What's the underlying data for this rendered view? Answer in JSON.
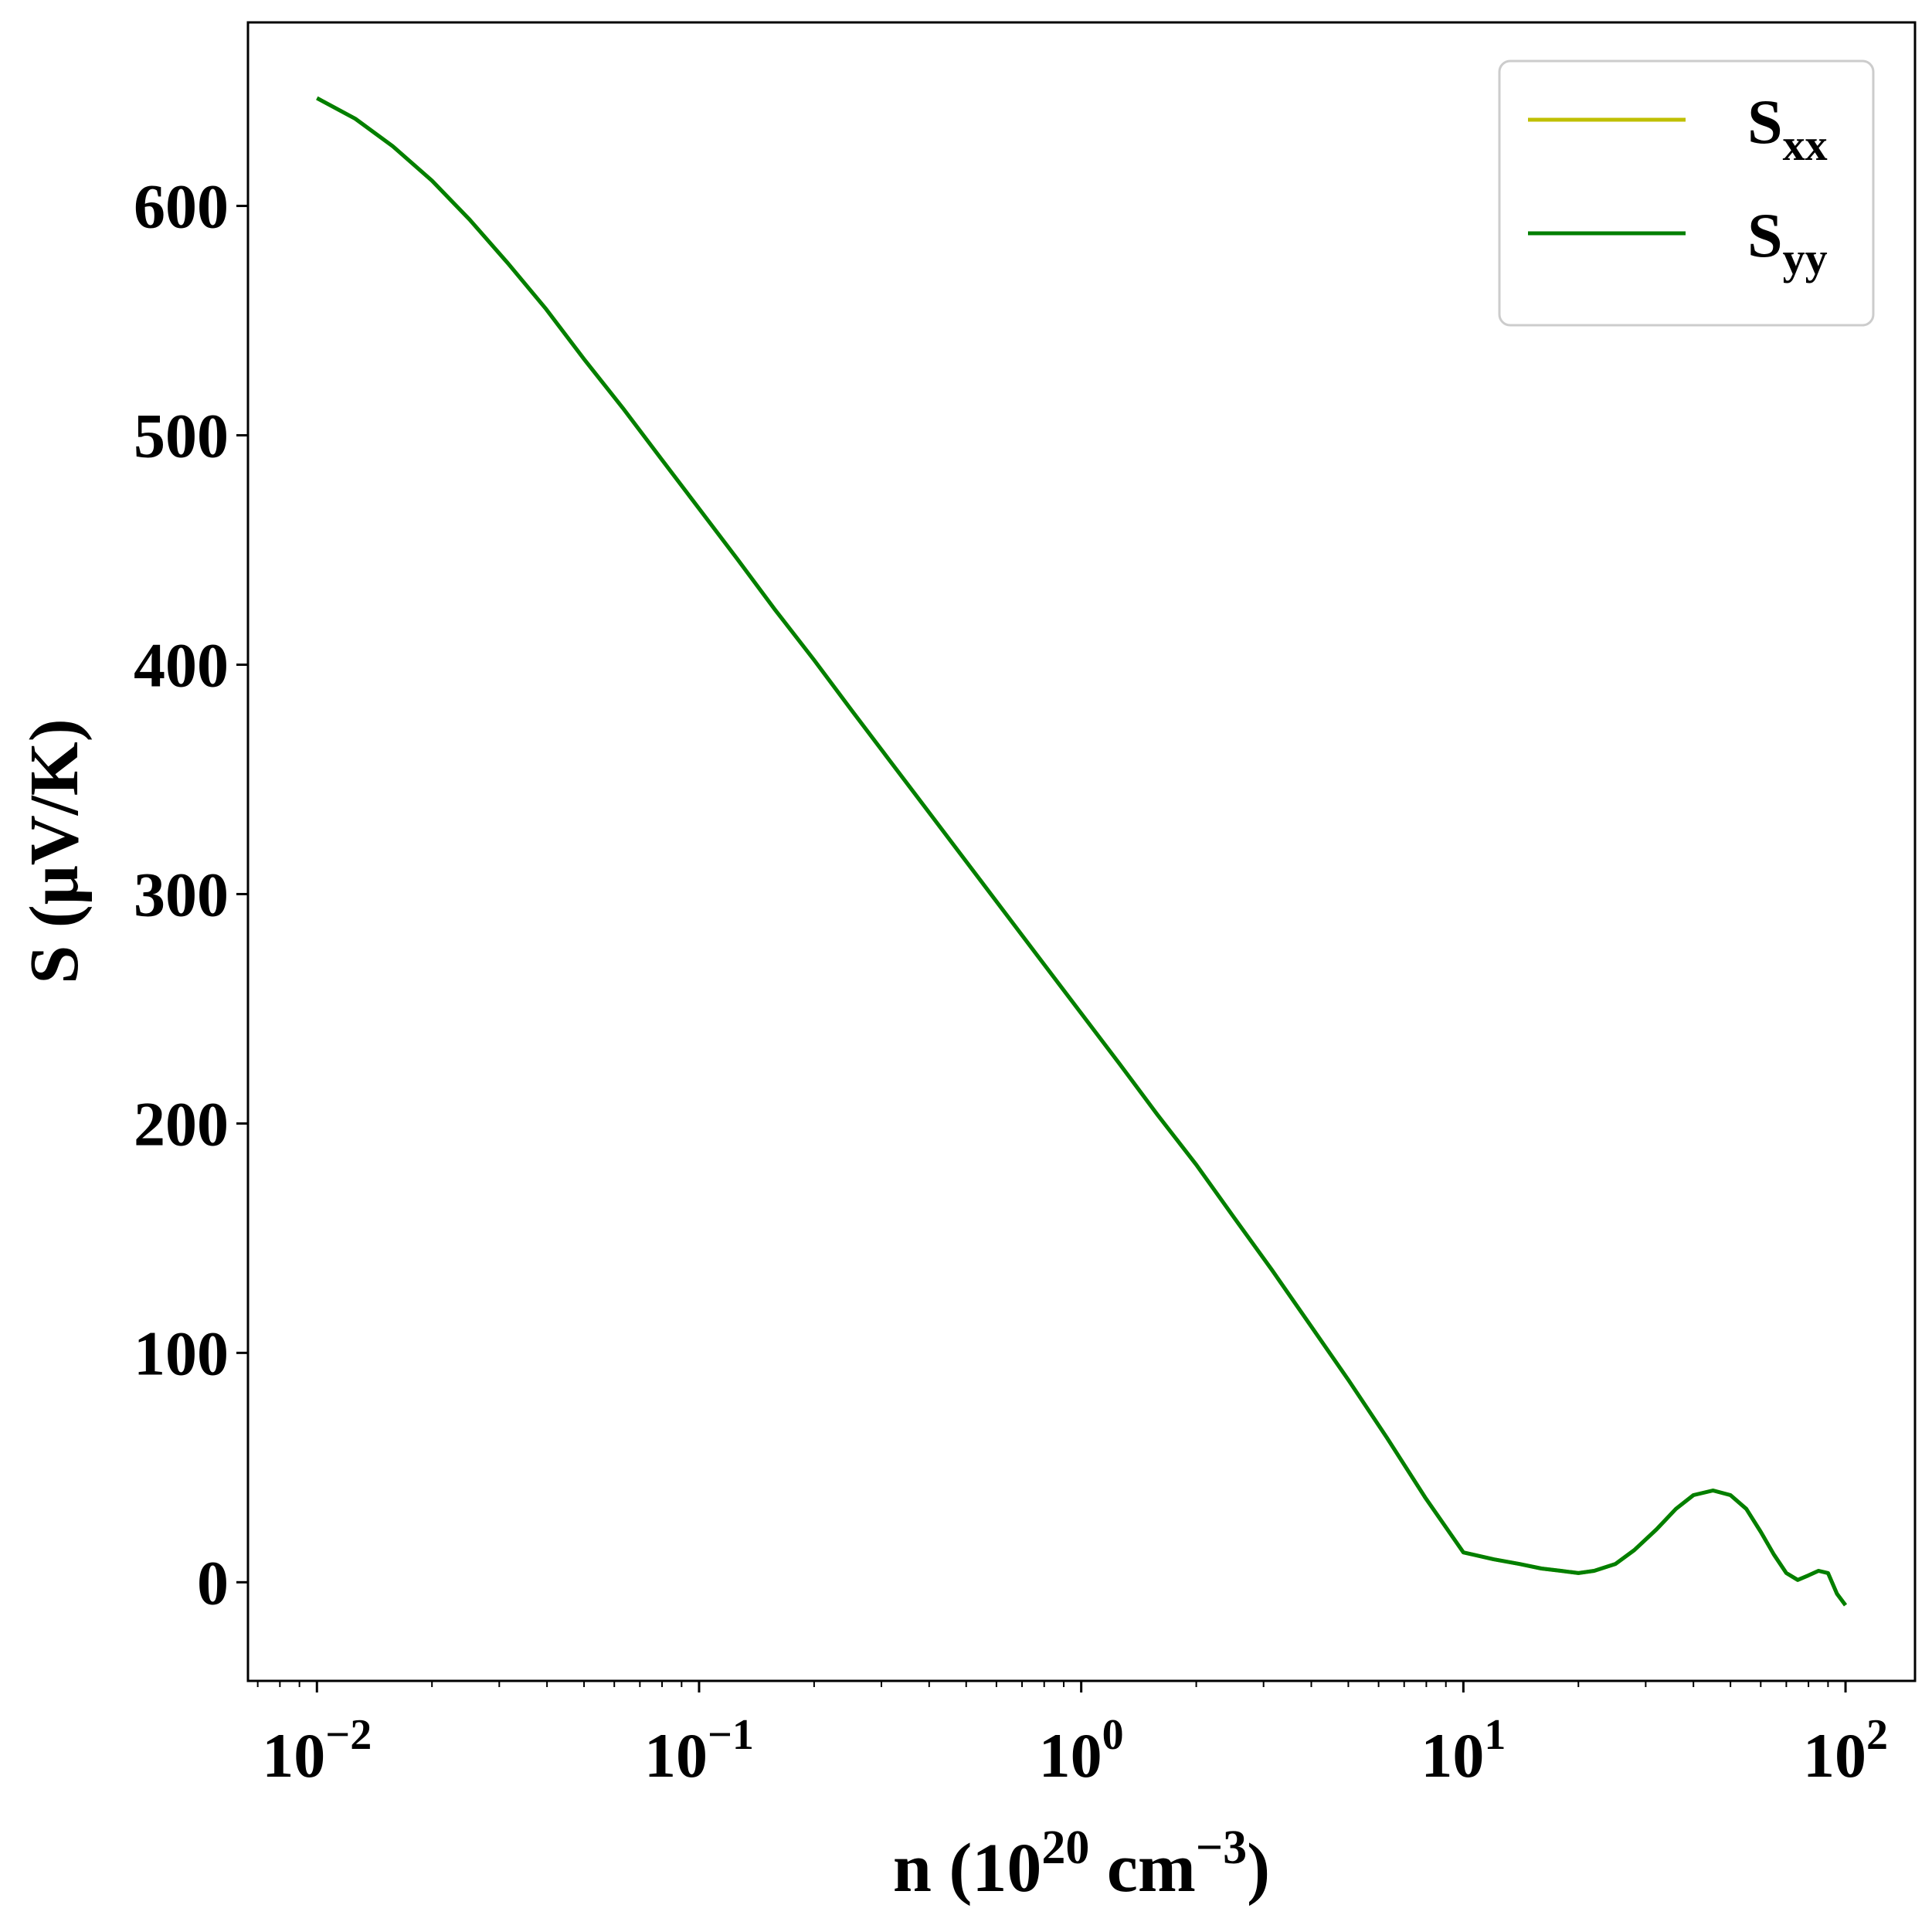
{
  "chart_data": {
    "type": "line",
    "xlabel": {
      "prefix": "n (10",
      "sup1": "20",
      "mid": " cm",
      "sup2": "−3",
      "suffix": ")"
    },
    "ylabel": "S (μV/K)",
    "x_scale": "log",
    "xlim": [
      0.0066,
      152
    ],
    "ylim": [
      -43,
      680
    ],
    "x_major_ticks": [
      {
        "value": 0.01,
        "base": "10",
        "exp": "−2"
      },
      {
        "value": 0.1,
        "base": "10",
        "exp": "−1"
      },
      {
        "value": 1,
        "base": "10",
        "exp": "0"
      },
      {
        "value": 10,
        "base": "10",
        "exp": "1"
      },
      {
        "value": 100,
        "base": "10",
        "exp": "2"
      }
    ],
    "y_ticks": [
      0,
      100,
      200,
      300,
      400,
      500,
      600
    ],
    "y_tick_labels": [
      "0",
      "100",
      "200",
      "300",
      "400",
      "500",
      "600"
    ],
    "grid": false,
    "legend_position": "top-right",
    "series": [
      {
        "name": "S",
        "sub": "xx",
        "color": "#bfbf00",
        "x": [
          0.01,
          0.0126,
          0.0158,
          0.02,
          0.0251,
          0.0316,
          0.0398,
          0.0501,
          0.0631,
          0.0794,
          0.1,
          0.126,
          0.158,
          0.2,
          0.251,
          0.316,
          0.398,
          0.501,
          0.631,
          0.794,
          1,
          1.26,
          1.58,
          2,
          2.51,
          3.16,
          3.98,
          5.01,
          6.31,
          7.94,
          10,
          12,
          14,
          16,
          18,
          20,
          22,
          25,
          28,
          32,
          36,
          40,
          45,
          50,
          55,
          60,
          65,
          70,
          75,
          80,
          85,
          90,
          95,
          100
        ],
        "y": [
          647,
          638,
          626,
          611,
          594,
          575,
          555,
          533,
          512,
          490,
          468,
          446,
          424,
          402,
          380,
          358,
          336,
          314,
          292,
          270,
          248,
          226,
          204,
          182,
          159,
          136,
          112,
          88,
          63,
          37,
          13,
          10,
          8,
          6,
          5,
          4,
          5,
          8,
          14,
          23,
          32,
          38,
          40,
          38,
          32,
          22,
          12,
          4,
          1,
          3,
          5,
          4,
          -5,
          -10
        ]
      },
      {
        "name": "S",
        "sub": "yy",
        "color": "#007f00",
        "x": [
          0.01,
          0.0126,
          0.0158,
          0.02,
          0.0251,
          0.0316,
          0.0398,
          0.0501,
          0.0631,
          0.0794,
          0.1,
          0.126,
          0.158,
          0.2,
          0.251,
          0.316,
          0.398,
          0.501,
          0.631,
          0.794,
          1,
          1.26,
          1.58,
          2,
          2.51,
          3.16,
          3.98,
          5.01,
          6.31,
          7.94,
          10,
          12,
          14,
          16,
          18,
          20,
          22,
          25,
          28,
          32,
          36,
          40,
          45,
          50,
          55,
          60,
          65,
          70,
          75,
          80,
          85,
          90,
          95,
          100
        ],
        "y": [
          647,
          638,
          626,
          611,
          594,
          575,
          555,
          533,
          512,
          490,
          468,
          446,
          424,
          402,
          380,
          358,
          336,
          314,
          292,
          270,
          248,
          226,
          204,
          182,
          159,
          136,
          112,
          88,
          63,
          37,
          13,
          10,
          8,
          6,
          5,
          4,
          5,
          8,
          14,
          23,
          32,
          38,
          40,
          38,
          32,
          22,
          12,
          4,
          1,
          3,
          5,
          4,
          -5,
          -10
        ]
      }
    ]
  }
}
